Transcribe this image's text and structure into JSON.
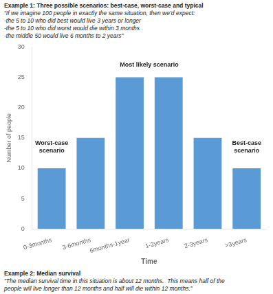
{
  "chart_data": {
    "type": "bar",
    "title": "Example 1: Three possible scenarios: best-case, worst-case and typical",
    "subtitle": [
      "“If we imagine 100 people in exactly the same situation, then we’d expect:",
      "-the 5 to 10 who did best would live 3 years or longer",
      "-the 5 to 10 who did worst would die within 3 months",
      "-the middle 50 would live 6 months to 2 years”"
    ],
    "categories": [
      "0-3months",
      "3-6months",
      "6months-1year",
      "1-2years",
      "2-3years",
      ">3years"
    ],
    "values": [
      10,
      15,
      25,
      25,
      15,
      10
    ],
    "color": "#5B9BD5",
    "xlabel": "Time",
    "ylabel": "Number of people",
    "ylim": [
      0,
      30
    ],
    "yticks": [
      0,
      5,
      10,
      15,
      20,
      25,
      30
    ],
    "grid": false,
    "annotations": [
      {
        "text": "Worst-case\nscenario",
        "x": 0,
        "y": 13.5
      },
      {
        "text": "Most likely scenario",
        "x": 2.5,
        "y": 26.5
      },
      {
        "text": "Best-case\nscenario",
        "x": 5,
        "y": 13.5
      }
    ],
    "footer_title": "Example 2: Median survival",
    "footer": [
      "“The median survival time in this situation is about 12 months.  This means half of the",
      "people will live longer than 12 months and half will die within 12 months.”"
    ]
  }
}
